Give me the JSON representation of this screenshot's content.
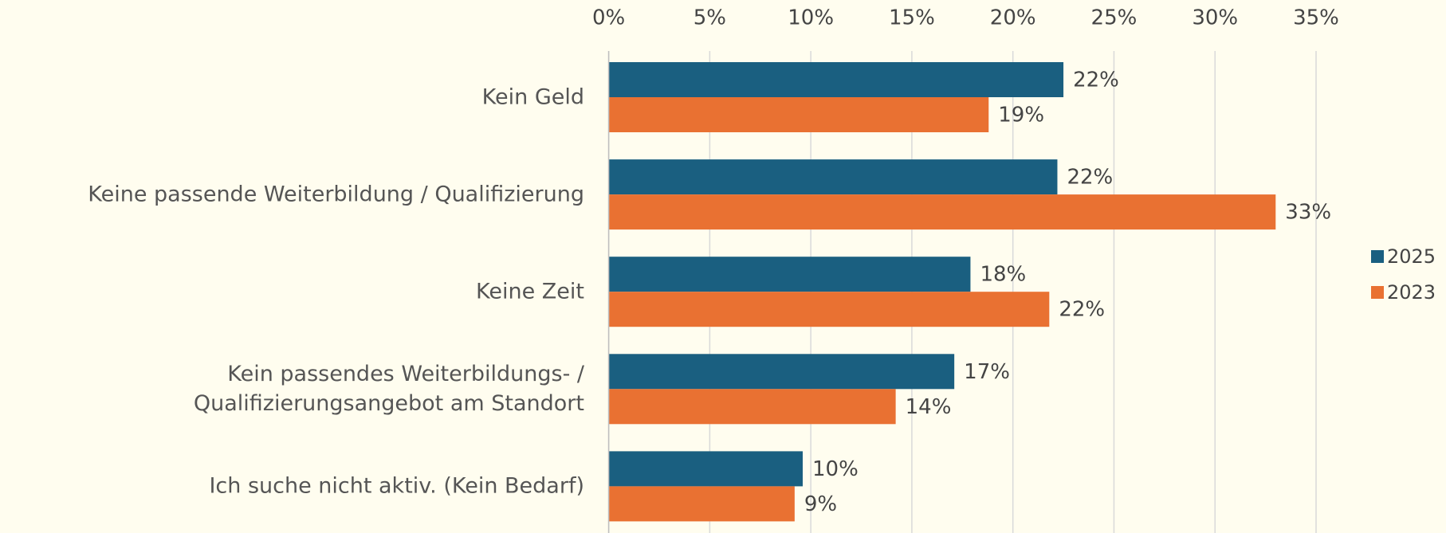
{
  "chart_data": {
    "type": "barh",
    "categories": [
      "Kein Geld",
      "Keine passende Weiterbildung / Qualifizierung",
      "Keine Zeit",
      "Kein passendes Weiterbildungs- /\nQualifizierungsangebot am Standort",
      "Ich suche nicht aktiv. (Kein Bedarf)"
    ],
    "series": [
      {
        "name": "2025",
        "color": "#1a5f80",
        "values": [
          22.5,
          22.2,
          17.9,
          17.1,
          9.6
        ],
        "value_labels": [
          "22%",
          "22%",
          "18%",
          "17%",
          "10%"
        ]
      },
      {
        "name": "2023",
        "color": "#e97132",
        "values": [
          18.8,
          33.0,
          21.8,
          14.2,
          9.2
        ],
        "value_labels": [
          "19%",
          "33%",
          "22%",
          "14%",
          "9%"
        ]
      }
    ],
    "xlim": [
      0,
      35
    ],
    "xticks": [
      {
        "value": 0,
        "label": "0%"
      },
      {
        "value": 5,
        "label": "5%"
      },
      {
        "value": 10,
        "label": "10%"
      },
      {
        "value": 15,
        "label": "15%"
      },
      {
        "value": 20,
        "label": "20%"
      },
      {
        "value": 25,
        "label": "25%"
      },
      {
        "value": 30,
        "label": "30%"
      },
      {
        "value": 35,
        "label": "35%"
      }
    ],
    "grid": true,
    "legend": "right"
  }
}
